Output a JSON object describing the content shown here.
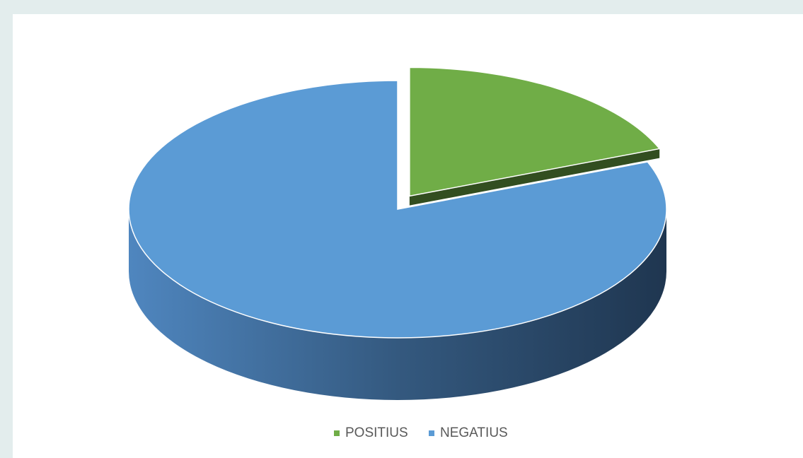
{
  "chart_data": {
    "type": "pie",
    "categories": [
      "POSITIUS",
      "NEGATIUS"
    ],
    "values": [
      19,
      81
    ],
    "colors": [
      "#70ad47",
      "#5b9bd5"
    ],
    "legend": "bottom",
    "three_d": true
  }
}
